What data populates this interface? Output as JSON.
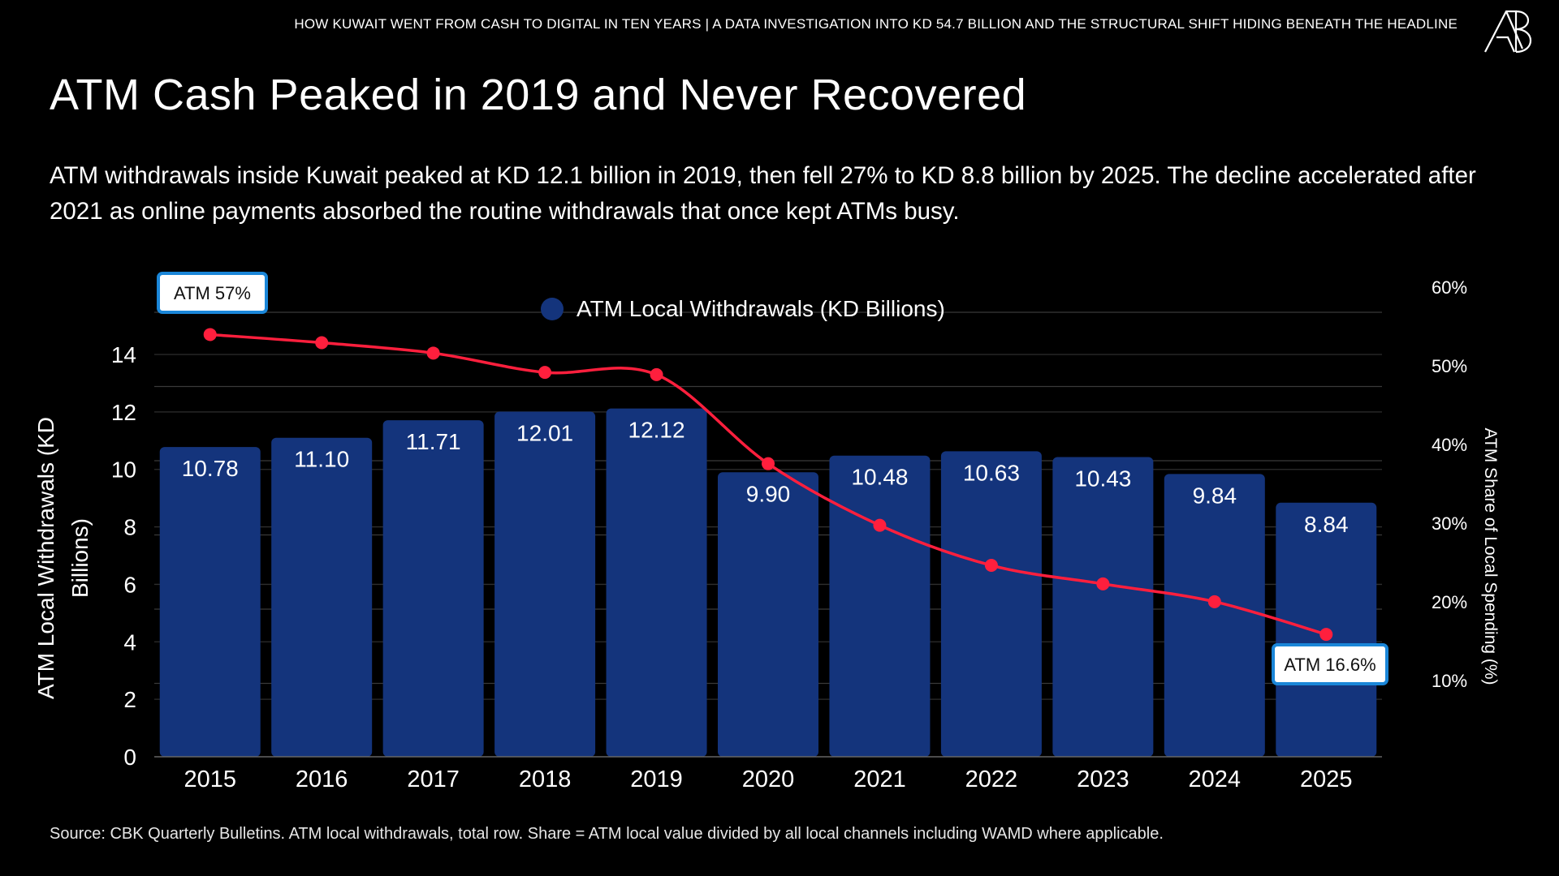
{
  "header": {
    "kicker": "HOW KUWAIT WENT FROM CASH TO DIGITAL IN TEN YEARS | A DATA INVESTIGATION INTO KD 54.7 BILLION AND THE STRUCTURAL SHIFT HIDING BENEATH THE HEADLINE",
    "logo_text": "AB"
  },
  "title": "ATM Cash Peaked in 2019 and Never Recovered",
  "subtitle": "ATM withdrawals inside Kuwait peaked at KD 12.1 billion in 2019, then fell 27% to KD 8.8 billion by 2025. The decline accelerated after 2021 as online payments absorbed the routine withdrawals that once kept ATMs busy.",
  "source": "Source: CBK Quarterly Bulletins. ATM local withdrawals, total row. Share = ATM local value divided by all local channels including WAMD where applicable.",
  "chart_data": {
    "type": "bar+line",
    "categories": [
      "2015",
      "2016",
      "2017",
      "2018",
      "2019",
      "2020",
      "2021",
      "2022",
      "2023",
      "2024",
      "2025"
    ],
    "series": [
      {
        "name": "ATM Local Withdrawals (KD Billions)",
        "type": "bar",
        "axis": "left",
        "color": "#14347c",
        "values": [
          10.78,
          11.1,
          11.71,
          12.01,
          12.12,
          9.9,
          10.48,
          10.63,
          10.43,
          9.84,
          8.84
        ],
        "labels": [
          "10.78",
          "11.10",
          "11.71",
          "12.01",
          "12.12",
          "9.90",
          "10.48",
          "10.63",
          "10.43",
          "9.84",
          "8.84"
        ]
      },
      {
        "type": "line",
        "axis": "right",
        "color": "#ff1f3d",
        "values": [
          57,
          55.9,
          54.5,
          51.9,
          51.6,
          39.6,
          31.3,
          25.9,
          23.4,
          21.0,
          16.6
        ]
      }
    ],
    "ylabel_left": "ATM Local Withdrawals (KD Billions)",
    "ylabel_right": "ATM Share of Local Spending (%)",
    "ylim_left": [
      0,
      14
    ],
    "yticks_left": [
      "0",
      "2",
      "4",
      "6",
      "8",
      "10",
      "12",
      "14"
    ],
    "ylim_right": [
      0,
      60
    ],
    "yticks_right": [
      "10%",
      "20%",
      "30%",
      "40%",
      "50%",
      "60%"
    ],
    "annotations": [
      "ATM 57%",
      "ATM 16.6%"
    ],
    "annotation_border_color": "#1a86d8",
    "legend": "top-center",
    "grid": true
  }
}
